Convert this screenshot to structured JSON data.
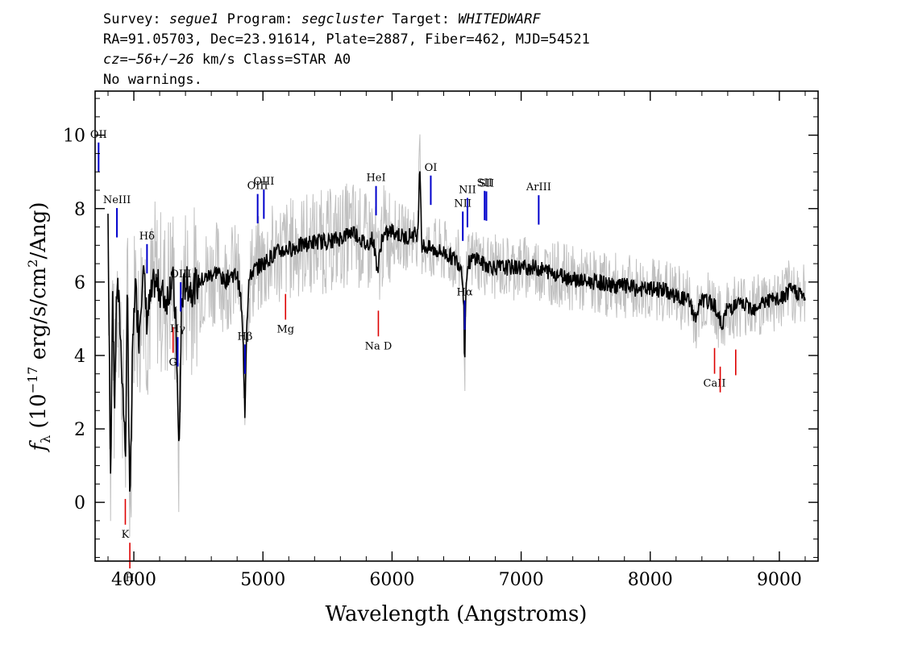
{
  "header": {
    "line1": {
      "survey_label": "Survey:",
      "survey": "segue1",
      "program_label": "Program:",
      "program": "segcluster",
      "target_label": "Target:",
      "target": "WHITEDWARF"
    },
    "line2": "RA=91.05703, Dec=23.91614, Plate=2887, Fiber=462, MJD=54521",
    "line3": {
      "cz": "cz=−56+/−26",
      "rest": " km/s Class=STAR A0"
    },
    "line4": "No warnings."
  },
  "chart_data": {
    "type": "line",
    "xlabel": "Wavelength (Angstroms)",
    "ylabel": "fλ (10⁻¹⁷ erg/s/cm²/Ang)",
    "xlim": [
      3700,
      9300
    ],
    "ylim": [
      -1.6,
      11.2
    ],
    "x_ticks": [
      4000,
      5000,
      6000,
      7000,
      8000,
      9000
    ],
    "y_ticks": [
      0,
      2,
      4,
      6,
      8,
      10
    ],
    "x_tick_labels": [
      "4000",
      "5000",
      "6000",
      "7000",
      "8000",
      "9000"
    ],
    "y_tick_labels": [
      "0",
      "2",
      "4",
      "6",
      "8",
      "10"
    ],
    "series": [
      {
        "color": "#000000",
        "x": [
          3800,
          3820,
          3835,
          3850,
          3870,
          3890,
          3910,
          3935,
          3950,
          3970,
          3990,
          4010,
          4040,
          4070,
          4100,
          4130,
          4160,
          4200,
          4250,
          4300,
          4330,
          4340,
          4350,
          4370,
          4400,
          4450,
          4500,
          4550,
          4600,
          4650,
          4700,
          4750,
          4800,
          4830,
          4850,
          4861,
          4870,
          4890,
          4920,
          4960,
          5000,
          5100,
          5200,
          5300,
          5400,
          5500,
          5600,
          5700,
          5800,
          5850,
          5890,
          5920,
          6000,
          6100,
          6150,
          6200,
          6215,
          6230,
          6300,
          6400,
          6500,
          6540,
          6555,
          6563,
          6570,
          6590,
          6650,
          6700,
          6800,
          6900,
          7000,
          7100,
          7200,
          7300,
          7400,
          7500,
          7600,
          7700,
          7800,
          7900,
          8000,
          8100,
          8200,
          8300,
          8350,
          8400,
          8500,
          8550,
          8600,
          8700,
          8800,
          8900,
          9000,
          9100,
          9200
        ],
        "y": [
          7.8,
          0.5,
          6.0,
          2.5,
          6.2,
          5.0,
          3.5,
          1.2,
          5.8,
          -0.2,
          4.0,
          6.0,
          4.5,
          6.5,
          5.0,
          5.5,
          6.0,
          5.8,
          5.5,
          6.2,
          4.5,
          2.5,
          1.2,
          5.5,
          6.0,
          5.8,
          6.0,
          6.1,
          6.2,
          6.3,
          6.0,
          6.2,
          6.2,
          5.5,
          4.0,
          2.3,
          4.5,
          6.0,
          6.3,
          6.4,
          6.5,
          6.8,
          6.9,
          7.0,
          7.1,
          7.1,
          7.2,
          7.4,
          7.0,
          7.2,
          6.3,
          7.2,
          7.4,
          7.2,
          7.3,
          7.3,
          9.4,
          7.0,
          6.9,
          6.8,
          6.6,
          6.4,
          5.5,
          3.5,
          5.8,
          6.5,
          6.7,
          6.5,
          6.4,
          6.4,
          6.4,
          6.4,
          6.3,
          6.2,
          6.1,
          6.0,
          6.0,
          5.9,
          5.9,
          5.8,
          5.8,
          5.8,
          5.6,
          5.5,
          5.0,
          5.5,
          5.4,
          4.8,
          5.3,
          5.4,
          5.3,
          5.5,
          5.5,
          5.8,
          5.6
        ]
      }
    ],
    "emission_lines": [
      {
        "label": "OII",
        "x": 3727
      },
      {
        "label": "NeIII",
        "x": 3869
      },
      {
        "label": "Hδ",
        "x": 4102
      },
      {
        "label": "Hγ",
        "x": 4340
      },
      {
        "label": "OIII",
        "x": 4363
      },
      {
        "label": "Hβ",
        "x": 4861
      },
      {
        "label": "OIII",
        "x": 4959
      },
      {
        "label": "OIII",
        "x": 5007
      },
      {
        "label": "HeI",
        "x": 5876
      },
      {
        "label": "OI",
        "x": 6300
      },
      {
        "label": "NII",
        "x": 6548
      },
      {
        "label": "Hα",
        "x": 6563
      },
      {
        "label": "NII",
        "x": 6584
      },
      {
        "label": "SII",
        "x": 6717
      },
      {
        "label": "SII",
        "x": 6731
      },
      {
        "label": "ArIII",
        "x": 7136
      }
    ],
    "absorption_lines": [
      {
        "label": "K",
        "x": 3934
      },
      {
        "label": "H",
        "x": 3969
      },
      {
        "label": "G",
        "x": 4304
      },
      {
        "label": "Mg",
        "x": 5175
      },
      {
        "label": "Na  D",
        "x": 5894
      },
      {
        "label": "CaII",
        "x": 8498
      },
      {
        "label": "CaII",
        "x": 8542
      },
      {
        "label": "CaII",
        "x": 8662
      }
    ],
    "colors": {
      "flux": "#000000",
      "noise": "#c0c0c0",
      "emission": "#0000cc",
      "absorption": "#dd0000"
    }
  }
}
